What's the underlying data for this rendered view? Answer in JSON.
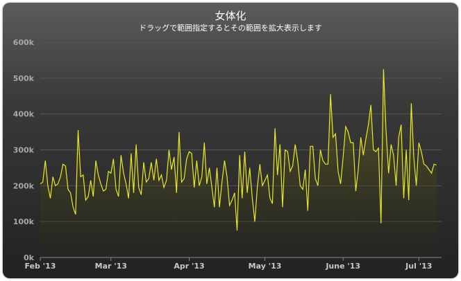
{
  "chart_data": {
    "type": "area",
    "title": "女体化",
    "subtitle": "ドラッグで範囲指定するとその範囲を拡大表示します",
    "xlabel": "",
    "ylabel": "",
    "x_range": [
      "2013-02-01",
      "2013-07-10"
    ],
    "ylim": [
      0,
      600000
    ],
    "y_ticks": [
      0,
      100000,
      200000,
      300000,
      400000,
      500000,
      600000
    ],
    "y_tick_labels": [
      "0k",
      "100k",
      "200k",
      "300k",
      "400k",
      "500k",
      "600k"
    ],
    "x_ticks": [
      "2013-02-01",
      "2013-03-01",
      "2013-04-01",
      "2013-05-01",
      "2013-06-01",
      "2013-07-01"
    ],
    "x_tick_labels": [
      "Feb '13",
      "Mar '13",
      "Apr '13",
      "May '13",
      "June '13",
      "Jul '13"
    ],
    "grid": true,
    "legend": "none",
    "colors": {
      "line": "#e8e82c",
      "fill_top": "#6a6a1e",
      "grid": "#555555",
      "axis": "#888888"
    },
    "series": [
      {
        "start_date": "2013-02-01",
        "interval": "day",
        "values": [
          205000,
          210000,
          270000,
          200000,
          165000,
          225000,
          200000,
          205000,
          225000,
          260000,
          255000,
          190000,
          180000,
          140000,
          120000,
          355000,
          225000,
          230000,
          160000,
          170000,
          215000,
          170000,
          270000,
          230000,
          205000,
          185000,
          190000,
          240000,
          235000,
          275000,
          190000,
          170000,
          285000,
          235000,
          205000,
          165000,
          290000,
          180000,
          315000,
          195000,
          175000,
          265000,
          210000,
          220000,
          265000,
          215000,
          275000,
          215000,
          230000,
          195000,
          215000,
          300000,
          245000,
          280000,
          180000,
          350000,
          210000,
          220000,
          275000,
          295000,
          290000,
          195000,
          270000,
          200000,
          225000,
          320000,
          205000,
          250000,
          195000,
          140000,
          250000,
          140000,
          210000,
          270000,
          225000,
          145000,
          160000,
          180000,
          75000,
          285000,
          165000,
          295000,
          180000,
          250000,
          165000,
          100000,
          195000,
          260000,
          200000,
          215000,
          230000,
          165000,
          150000,
          360000,
          230000,
          315000,
          140000,
          300000,
          295000,
          240000,
          255000,
          315000,
          270000,
          200000,
          190000,
          245000,
          130000,
          310000,
          310000,
          220000,
          200000,
          300000,
          270000,
          260000,
          260000,
          455000,
          335000,
          345000,
          240000,
          205000,
          280000,
          365000,
          350000,
          320000,
          320000,
          185000,
          245000,
          335000,
          285000,
          330000,
          370000,
          425000,
          300000,
          295000,
          305000,
          95000,
          525000,
          355000,
          235000,
          315000,
          285000,
          200000,
          335000,
          370000,
          165000,
          300000,
          160000,
          430000,
          280000,
          200000,
          320000,
          295000,
          260000,
          255000,
          245000,
          235000,
          260000,
          258000
        ]
      }
    ]
  }
}
